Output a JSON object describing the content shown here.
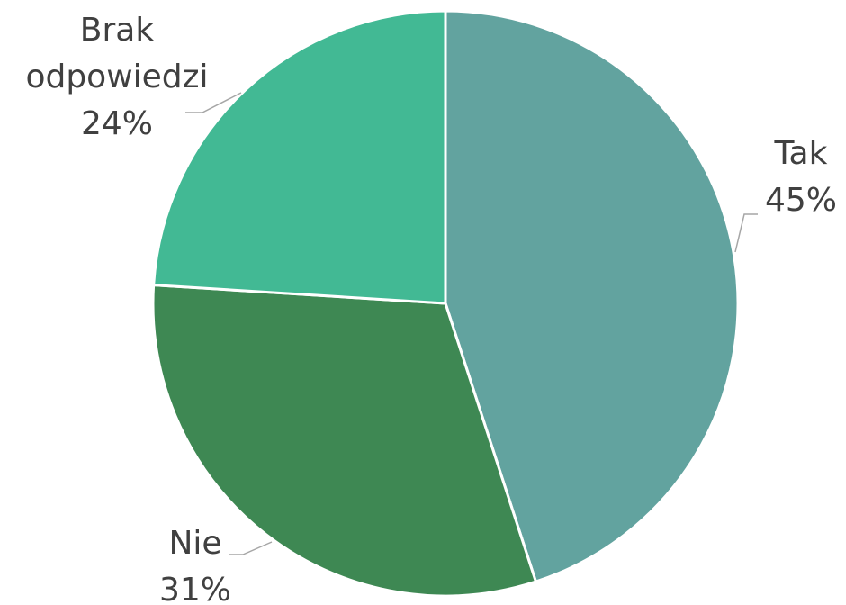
{
  "chart_data": {
    "type": "pie",
    "categories": [
      "Tak",
      "Nie",
      "Brak odpowiedzi"
    ],
    "values": [
      45,
      31,
      24
    ],
    "value_labels": [
      "45%",
      "31%",
      "24%"
    ],
    "colors": [
      "#62a39f",
      "#3e8853",
      "#42b994"
    ]
  }
}
